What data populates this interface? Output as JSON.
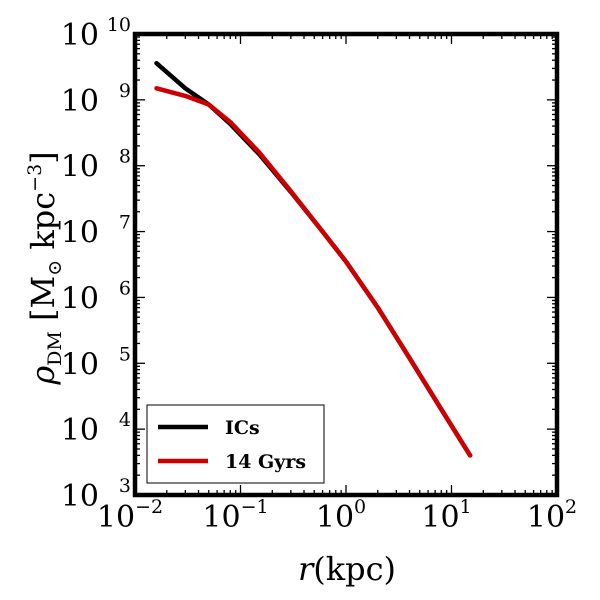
{
  "chart_data": {
    "type": "line",
    "x_scale": "log",
    "y_scale": "log",
    "xlim": [
      0.01,
      100
    ],
    "ylim": [
      1000,
      10000000000
    ],
    "xlabel": "r(kpc)",
    "xlabel_parts": {
      "symbol": "r",
      "unit": "(kpc)"
    },
    "ylabel": "ρDM [M⊙ kpc−3]",
    "ylabel_parts": {
      "symbol": "ρ",
      "subscript": "DM",
      "unit_open": " [M",
      "sun": "⊙",
      "unit_mid": " kpc",
      "exp": "−3",
      "unit_close": "]"
    },
    "x_ticks": [
      {
        "base": "10",
        "exp": "−2",
        "value": 0.01
      },
      {
        "base": "10",
        "exp": "−1",
        "value": 0.1
      },
      {
        "base": "10",
        "exp": "0",
        "value": 1
      },
      {
        "base": "10",
        "exp": "1",
        "value": 10
      },
      {
        "base": "10",
        "exp": "2",
        "value": 100
      }
    ],
    "y_ticks": [
      {
        "base": "10",
        "exp": "3",
        "value": 1000
      },
      {
        "base": "10",
        "exp": "4",
        "value": 10000
      },
      {
        "base": "10",
        "exp": "5",
        "value": 100000
      },
      {
        "base": "10",
        "exp": "6",
        "value": 1000000
      },
      {
        "base": "10",
        "exp": "7",
        "value": 10000000
      },
      {
        "base": "10",
        "exp": "8",
        "value": 100000000
      },
      {
        "base": "10",
        "exp": "9",
        "value": 1000000000
      },
      {
        "base": "10",
        "exp": "10",
        "value": 10000000000
      }
    ],
    "legend": {
      "location": "lower-left"
    },
    "series": [
      {
        "name": "ICs",
        "color": "#000000",
        "x": [
          0.016,
          0.03,
          0.05,
          0.08,
          0.15,
          0.3,
          0.6,
          1.0,
          2.0,
          4.0,
          8.0,
          15.0
        ],
        "y": [
          3600000000,
          1500000000,
          850000000,
          430000000,
          150000000,
          40000000,
          10000000,
          3500000,
          700000,
          120000,
          20000,
          4000
        ]
      },
      {
        "name": "14 Gyrs",
        "color": "#cc0000",
        "x": [
          0.016,
          0.03,
          0.05,
          0.08,
          0.15,
          0.3,
          0.6,
          1.0,
          2.0,
          4.0,
          8.0,
          15.0
        ],
        "y": [
          1500000000,
          1150000000,
          850000000,
          460000000,
          160000000,
          41000000,
          10000000,
          3500000,
          700000,
          120000,
          20000,
          4000
        ]
      }
    ]
  }
}
